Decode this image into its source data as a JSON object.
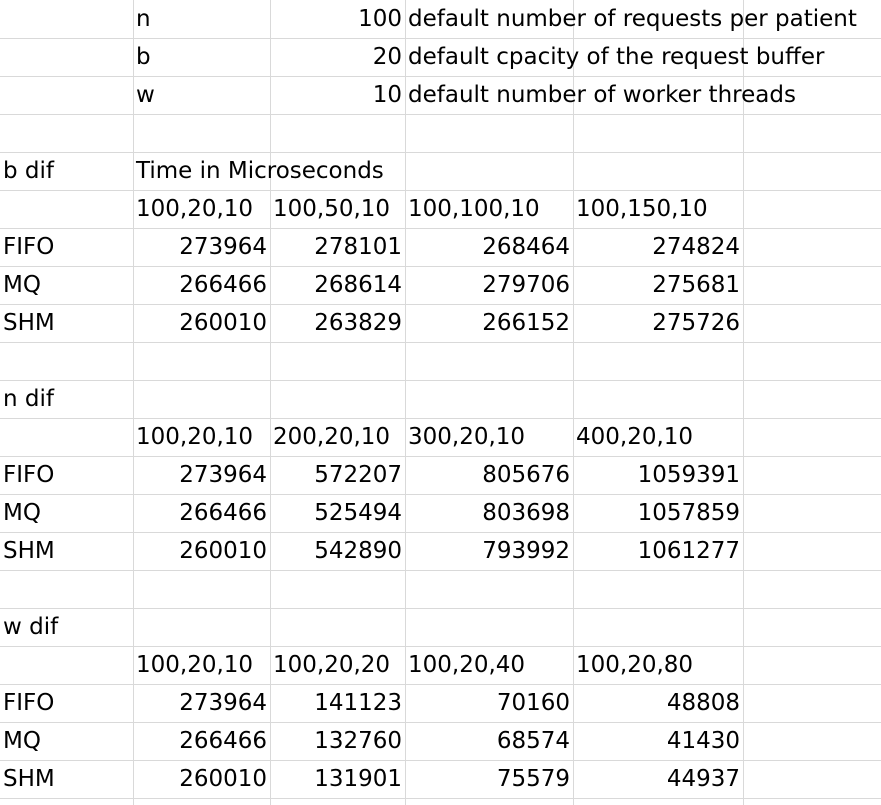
{
  "params": [
    {
      "name": "n",
      "value": "100",
      "desc": "default number of requests per patient"
    },
    {
      "name": "b",
      "value": "20",
      "desc": "default cpacity of the request buffer"
    },
    {
      "name": "w",
      "value": "10",
      "desc": "default number of worker threads"
    }
  ],
  "time_label": "Time in Microseconds",
  "sections": [
    {
      "label": "b dif",
      "headers": [
        "100,20,10",
        "100,50,10",
        "100,100,10",
        "100,150,10"
      ],
      "rows": [
        {
          "name": "FIFO",
          "values": [
            "273964",
            "278101",
            "268464",
            "274824"
          ]
        },
        {
          "name": "MQ",
          "values": [
            "266466",
            "268614",
            "279706",
            "275681"
          ]
        },
        {
          "name": "SHM",
          "values": [
            "260010",
            "263829",
            "266152",
            "275726"
          ]
        }
      ]
    },
    {
      "label": "n dif",
      "headers": [
        "100,20,10",
        "200,20,10",
        "300,20,10",
        "400,20,10"
      ],
      "rows": [
        {
          "name": "FIFO",
          "values": [
            "273964",
            "572207",
            "805676",
            "1059391"
          ]
        },
        {
          "name": "MQ",
          "values": [
            "266466",
            "525494",
            "803698",
            "1057859"
          ]
        },
        {
          "name": "SHM",
          "values": [
            "260010",
            "542890",
            "793992",
            "1061277"
          ]
        }
      ]
    },
    {
      "label": "w dif",
      "headers": [
        "100,20,10",
        "100,20,20",
        "100,20,40",
        "100,20,80"
      ],
      "rows": [
        {
          "name": "FIFO",
          "values": [
            "273964",
            "141123",
            "70160",
            "48808"
          ]
        },
        {
          "name": "MQ",
          "values": [
            "266466",
            "132760",
            "68574",
            "41430"
          ]
        },
        {
          "name": "SHM",
          "values": [
            "260010",
            "131901",
            "75579",
            "44937"
          ]
        }
      ]
    }
  ]
}
